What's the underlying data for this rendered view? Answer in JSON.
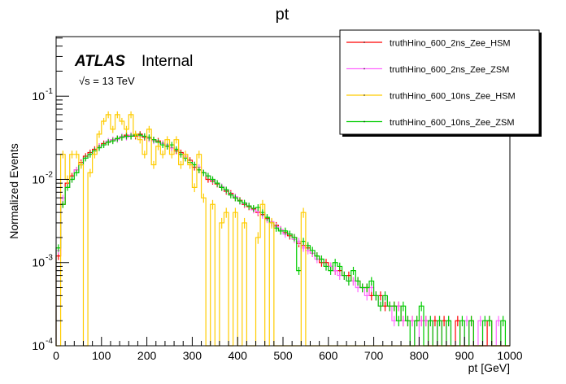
{
  "chart_data": {
    "type": "histogram-step",
    "title": "pt",
    "xlabel": "pt [GeV]",
    "ylabel": "Normalized Events",
    "xlim": [
      0,
      1000
    ],
    "ylim": [
      0.0001,
      0.52
    ],
    "yscale": "log",
    "bin_width": 10,
    "x_ticks": [
      "0",
      "100",
      "200",
      "300",
      "400",
      "500",
      "600",
      "700",
      "800",
      "900",
      "1000"
    ],
    "y_ticks": [
      {
        "base": "10",
        "exp": "-4",
        "value": 0.0001
      },
      {
        "base": "10",
        "exp": "-3",
        "value": 0.001
      },
      {
        "base": "10",
        "exp": "-2",
        "value": 0.01
      },
      {
        "base": "10",
        "exp": "-1",
        "value": 0.1
      }
    ],
    "grid": false,
    "legend_position": "top-right",
    "annotations": {
      "experiment": "ATLAS",
      "status": "Internal",
      "energy": "√s = 13 TeV"
    },
    "series": [
      {
        "name": "truthHino_600_2ns_Zee_HSM",
        "color": "#ff0000",
        "values": [
          0.0012,
          0.005,
          0.009,
          0.011,
          0.013,
          0.016,
          0.019,
          0.021,
          0.023,
          0.025,
          0.027,
          0.028,
          0.03,
          0.031,
          0.032,
          0.034,
          0.033,
          0.033,
          0.035,
          0.032,
          0.031,
          0.03,
          0.029,
          0.027,
          0.025,
          0.024,
          0.022,
          0.021,
          0.018,
          0.017,
          0.014,
          0.013,
          0.012,
          0.01,
          0.0095,
          0.0088,
          0.008,
          0.0072,
          0.0068,
          0.006,
          0.0056,
          0.005,
          0.0047,
          0.0044,
          0.004,
          0.0038,
          0.0034,
          0.003,
          0.0028,
          0.0025,
          0.0023,
          0.0021,
          0.002,
          0.0017,
          0.0016,
          0.0015,
          0.0013,
          0.0012,
          0.001,
          0.001,
          0.0009,
          0.0008,
          0.0008,
          0.0007,
          0.0007,
          0.0006,
          0.0006,
          0.0005,
          0.0005,
          0.0004,
          0.0004,
          0.0004,
          0.0003,
          0.0003,
          0.0003,
          0.0003,
          0.0002,
          0.0002,
          0.0002,
          0.0002,
          0.0002,
          0.0002,
          0,
          0.0002,
          0,
          0.0002,
          0,
          0,
          0.0002,
          0,
          0,
          0.0002,
          0,
          0,
          0,
          0.0002,
          0,
          0,
          0,
          0
        ]
      },
      {
        "name": "truthHino_600_2ns_Zee_ZSM",
        "color": "#ff66ff",
        "values": [
          0.0014,
          0.006,
          0.008,
          0.01,
          0.013,
          0.015,
          0.018,
          0.02,
          0.022,
          0.025,
          0.026,
          0.029,
          0.03,
          0.03,
          0.033,
          0.032,
          0.034,
          0.034,
          0.033,
          0.033,
          0.031,
          0.029,
          0.028,
          0.027,
          0.026,
          0.024,
          0.023,
          0.02,
          0.019,
          0.016,
          0.015,
          0.014,
          0.012,
          0.011,
          0.0098,
          0.009,
          0.0082,
          0.0074,
          0.0066,
          0.0062,
          0.0055,
          0.0051,
          0.0048,
          0.0043,
          0.0041,
          0.0037,
          0.0033,
          0.0031,
          0.0027,
          0.0025,
          0.0022,
          0.0022,
          0.0019,
          0.0018,
          0.0015,
          0.0014,
          0.0013,
          0.0011,
          0.0011,
          0.0009,
          0.0009,
          0.0008,
          0.0007,
          0.0007,
          0.0006,
          0.0006,
          0.0005,
          0.0005,
          0.0004,
          0.0005,
          0.0004,
          0.0003,
          0.0004,
          0.0003,
          0.0002,
          0.0003,
          0.0002,
          0.0002,
          0.0002,
          0,
          0.0002,
          0.0002,
          0.0002,
          0,
          0.0002,
          0,
          0.0002,
          0,
          0,
          0,
          0.0002,
          0,
          0,
          0.0002,
          0,
          0,
          0,
          0.0002,
          0,
          0
        ]
      },
      {
        "name": "truthHino_600_10ns_Zee_HSM",
        "color": "#ffcc00",
        "values": [
          0,
          0.02,
          0.01,
          0.02,
          0.02,
          0.015,
          0,
          0.012,
          0.02,
          0.035,
          0.05,
          0.06,
          0.04,
          0.06,
          0.05,
          0.04,
          0.06,
          0.035,
          0.03,
          0.02,
          0.04,
          0.015,
          0.025,
          0.02,
          0.03,
          0.02,
          0.03,
          0.015,
          0.02,
          0.015,
          0.008,
          0.02,
          0.006,
          0,
          0.005,
          0,
          0.003,
          0.004,
          0,
          0.004,
          0,
          0.003,
          0,
          0,
          0.002,
          0.005,
          0,
          0.003,
          0,
          0,
          0,
          0,
          0,
          0,
          0.004,
          0,
          0,
          0,
          0,
          0,
          0,
          0,
          0,
          0,
          0,
          0,
          0,
          0,
          0,
          0,
          0,
          0,
          0,
          0,
          0,
          0,
          0,
          0,
          0,
          0,
          0,
          0,
          0,
          0,
          0,
          0,
          0,
          0,
          0,
          0,
          0,
          0,
          0,
          0,
          0,
          0,
          0,
          0,
          0,
          0
        ]
      },
      {
        "name": "truthHino_600_10ns_Zee_ZSM",
        "color": "#00cc00",
        "values": [
          0.0015,
          0.005,
          0.008,
          0.01,
          0.012,
          0.015,
          0.018,
          0.02,
          0.022,
          0.024,
          0.026,
          0.028,
          0.029,
          0.031,
          0.032,
          0.033,
          0.033,
          0.034,
          0.034,
          0.033,
          0.032,
          0.03,
          0.028,
          0.026,
          0.025,
          0.026,
          0.023,
          0.02,
          0.018,
          0.016,
          0.015,
          0.013,
          0.012,
          0.011,
          0.01,
          0.009,
          0.008,
          0.0075,
          0.0065,
          0.006,
          0.0055,
          0.0052,
          0.0048,
          0.0045,
          0.0046,
          0.004,
          0.0035,
          0.003,
          0.0026,
          0.0024,
          0.0024,
          0.0022,
          0.002,
          0.0008,
          0.0018,
          0.0016,
          0.0014,
          0.0012,
          0.0011,
          0.0009,
          0.0008,
          0.001,
          0.0009,
          0.0007,
          0.0006,
          0.0008,
          0.0006,
          0.0005,
          0.0005,
          0.0006,
          0.0004,
          0.0003,
          0.0004,
          0.0003,
          0.0003,
          0.0002,
          0.0003,
          0.0002,
          0,
          0.0002,
          0.0003,
          0,
          0.0002,
          0,
          0.0002,
          0,
          0.0002,
          0,
          0,
          0.0002,
          0,
          0.0002,
          0,
          0,
          0.0002,
          0.0002,
          0,
          0,
          0.0002,
          0
        ]
      }
    ]
  }
}
